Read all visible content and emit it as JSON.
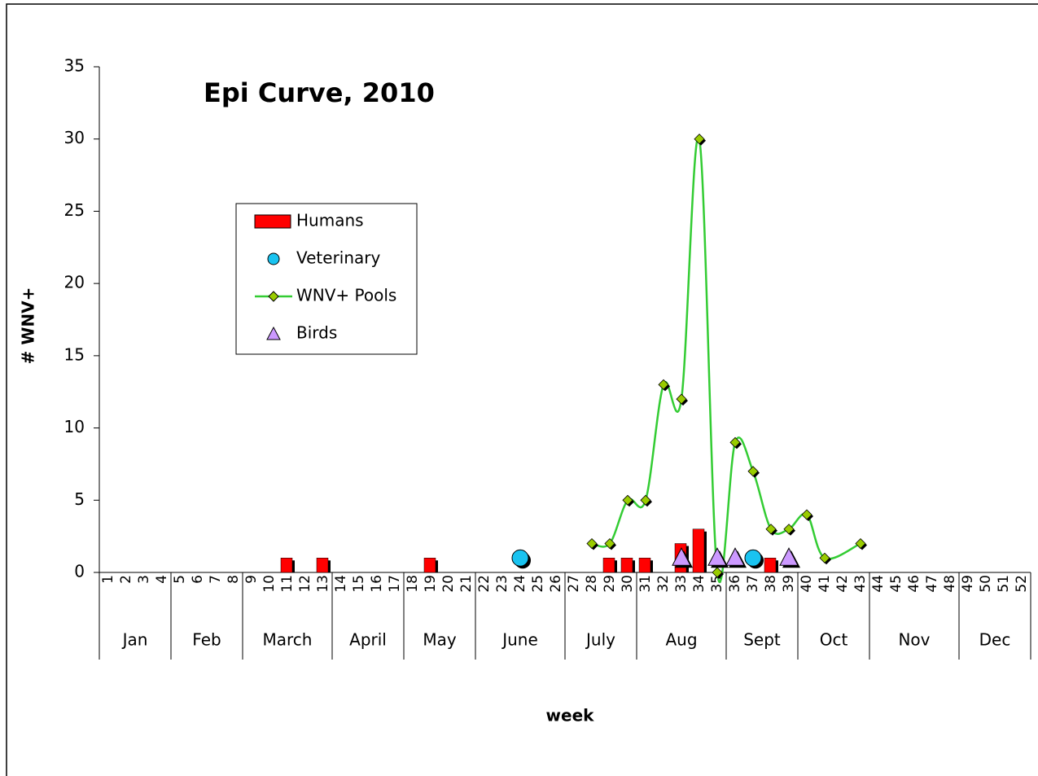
{
  "chart_data": {
    "type": "combo",
    "title": "Epi Curve, 2010",
    "y_label": "# WNV+",
    "x_label": "week",
    "categories": [
      "1",
      "2",
      "3",
      "4",
      "5",
      "6",
      "7",
      "8",
      "9",
      "10",
      "11",
      "12",
      "13",
      "14",
      "15",
      "16",
      "17",
      "18",
      "19",
      "20",
      "21",
      "22",
      "23",
      "24",
      "25",
      "26",
      "27",
      "28",
      "29",
      "30",
      "31",
      "32",
      "33",
      "34",
      "35",
      "36",
      "37",
      "38",
      "39",
      "40",
      "41",
      "42",
      "43",
      "44",
      "45",
      "46",
      "47",
      "48",
      "49",
      "50",
      "51",
      "52"
    ],
    "months": [
      {
        "name": "Jan",
        "weeks": 4
      },
      {
        "name": "Feb",
        "weeks": 4
      },
      {
        "name": "March",
        "weeks": 5
      },
      {
        "name": "April",
        "weeks": 4
      },
      {
        "name": "May",
        "weeks": 4
      },
      {
        "name": "June",
        "weeks": 5
      },
      {
        "name": "July",
        "weeks": 4
      },
      {
        "name": "Aug",
        "weeks": 5
      },
      {
        "name": "Sept",
        "weeks": 4
      },
      {
        "name": "Oct",
        "weeks": 4
      },
      {
        "name": "Nov",
        "weeks": 5
      },
      {
        "name": "Dec",
        "weeks": 4
      }
    ],
    "ylim": [
      0,
      35
    ],
    "yticks": [
      0,
      5,
      10,
      15,
      20,
      25,
      30,
      35
    ],
    "series": [
      {
        "name": "Humans",
        "type": "bar",
        "color": "#ff0000",
        "x": [
          11,
          13,
          19,
          29,
          30,
          31,
          33,
          34,
          38
        ],
        "values": [
          1,
          1,
          1,
          1,
          1,
          1,
          2,
          3,
          1
        ]
      },
      {
        "name": "Veterinary",
        "type": "circle",
        "color": "#19c3f0",
        "x": [
          24,
          37
        ],
        "values": [
          1,
          1
        ]
      },
      {
        "name": "WNV+ Pools",
        "type": "line",
        "color": "#33cc33",
        "marker_color": "#99cc00",
        "x": [
          28,
          29,
          30,
          31,
          32,
          33,
          34,
          35,
          36,
          37,
          38,
          39,
          40,
          41,
          43
        ],
        "values": [
          2,
          2,
          5,
          5,
          13,
          12,
          30,
          0,
          9,
          7,
          3,
          3,
          4,
          1,
          2
        ]
      },
      {
        "name": "Birds",
        "type": "triangle",
        "color": "#cc99ff",
        "x": [
          33,
          35,
          36,
          39
        ],
        "values": [
          1,
          1,
          1,
          1
        ]
      }
    ]
  }
}
